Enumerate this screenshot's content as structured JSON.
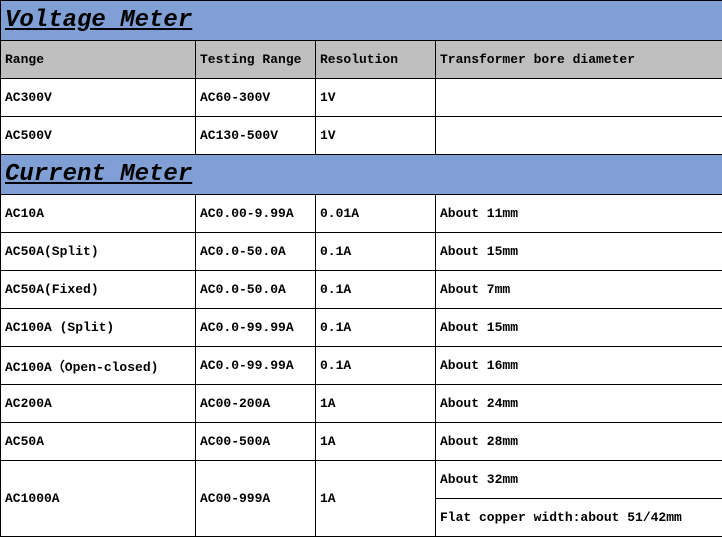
{
  "colors": {
    "section_bg": "#7f9fd5",
    "header_bg": "#bfbfbf",
    "cell_bg": "#ffffff",
    "border": "#000000",
    "text": "#000000"
  },
  "column_widths": {
    "col1": 195,
    "col2": 120,
    "col3": 120,
    "col4": 287
  },
  "sections": {
    "voltage": {
      "title": "Voltage Meter",
      "columns": [
        "Range",
        "Testing Range",
        "Resolution",
        "Transformer bore diameter"
      ],
      "rows": [
        {
          "range": "AC300V",
          "testing": "AC60-300V",
          "resolution": "1V",
          "bore": ""
        },
        {
          "range": "AC500V",
          "testing": "AC130-500V",
          "resolution": "1V",
          "bore": ""
        }
      ]
    },
    "current": {
      "title": "Current Meter",
      "rows": [
        {
          "range": "AC10A",
          "testing": "AC0.00-9.99A",
          "resolution": "0.01A",
          "bore": "About 11mm"
        },
        {
          "range": "AC50A(Split)",
          "testing": "AC0.0-50.0A",
          "resolution": "0.1A",
          "bore": "About 15mm"
        },
        {
          "range": "AC50A(Fixed)",
          "testing": "AC0.0-50.0A",
          "resolution": "0.1A",
          "bore": "About 7mm"
        },
        {
          "range": "AC100A (Split)",
          "testing": "AC0.0-99.99A",
          "resolution": "0.1A",
          "bore": "About 15mm"
        },
        {
          "range": "AC100A（Open-closed)",
          "testing": "AC0.0-99.99A",
          "resolution": "0.1A",
          "bore": "About 16mm"
        },
        {
          "range": "AC200A",
          "testing": "AC00-200A",
          "resolution": "1A",
          "bore": "About 24mm"
        },
        {
          "range": "AC50A",
          "testing": "AC00-500A",
          "resolution": "1A",
          "bore": "About 28mm"
        }
      ],
      "final_row": {
        "range": "AC1000A",
        "testing": "AC00-999A",
        "resolution": "1A",
        "bore1": "About 32mm",
        "bore2": "Flat copper width:about 51/42mm"
      }
    }
  }
}
